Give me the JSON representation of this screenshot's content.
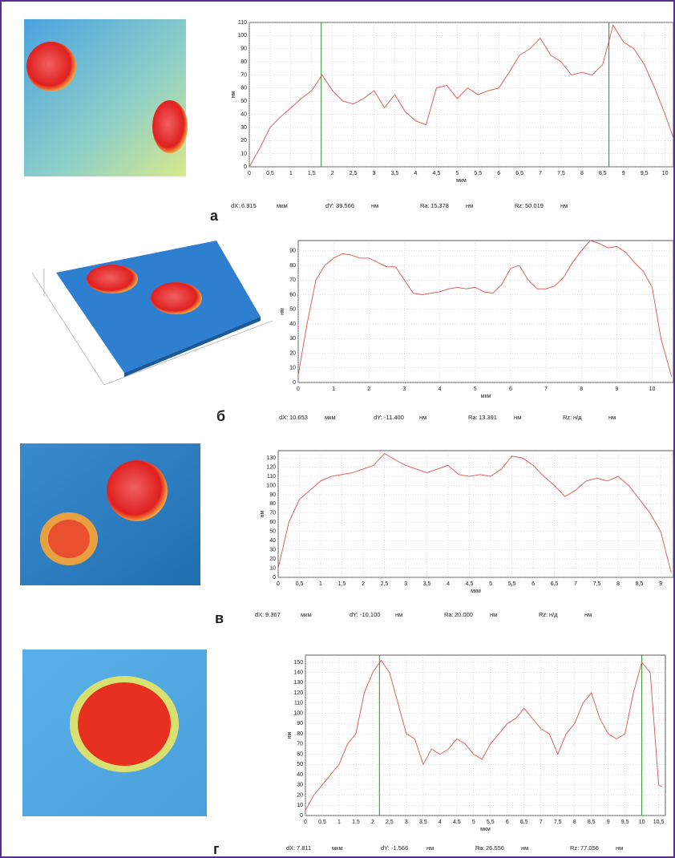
{
  "chart_data": [
    {
      "type": "line",
      "x_label": "мкм",
      "y_label": "нм",
      "letter": "а",
      "color": "#d9534f",
      "grid": true,
      "x": [
        0,
        0.25,
        0.5,
        0.75,
        1,
        1.25,
        1.5,
        1.75,
        2,
        2.25,
        2.5,
        2.75,
        3,
        3.25,
        3.5,
        3.75,
        4,
        4.25,
        4.5,
        4.75,
        5,
        5.25,
        5.5,
        5.75,
        6,
        6.25,
        6.5,
        6.75,
        7,
        7.25,
        7.5,
        7.75,
        8,
        8.25,
        8.5,
        8.75,
        9,
        9.25,
        9.5,
        9.75,
        10,
        10.2
      ],
      "values": [
        0,
        14,
        30,
        38,
        45,
        52,
        58,
        70,
        58,
        50,
        48,
        52,
        58,
        45,
        55,
        42,
        35,
        32,
        60,
        62,
        52,
        60,
        55,
        58,
        60,
        72,
        85,
        90,
        98,
        85,
        80,
        70,
        72,
        70,
        78,
        108,
        95,
        90,
        78,
        60,
        40,
        22
      ],
      "markers": [
        1.73,
        8.65
      ],
      "xlim": [
        0,
        10.2
      ],
      "ylim": [
        0,
        110
      ],
      "xticks": [
        0,
        {
          "value": 0.5,
          "label": "0,5"
        },
        1,
        {
          "value": 1.5,
          "label": "1,5"
        },
        2,
        {
          "value": 2.5,
          "label": "2,5"
        },
        3,
        {
          "value": 3.5,
          "label": "3,5"
        },
        4,
        {
          "value": 4.5,
          "label": "4,5"
        },
        5,
        {
          "value": 5.5,
          "label": "5,5"
        },
        6,
        {
          "value": 6.5,
          "label": "6,5"
        },
        7,
        {
          "value": 7.5,
          "label": "7,5"
        },
        8,
        {
          "value": 8.5,
          "label": "8,5"
        },
        9,
        {
          "value": 9.5,
          "label": "9,5"
        },
        10
      ],
      "yticks": [
        0,
        10,
        20,
        30,
        40,
        50,
        60,
        70,
        80,
        90,
        100,
        110
      ],
      "stats": [
        "dX:",
        "6.915",
        "мкм",
        "dY:",
        "39.566",
        "нм",
        "Ra:",
        "15.378",
        "нм",
        "Rz:",
        "50.019",
        "нм"
      ]
    },
    {
      "type": "line",
      "x_label": "мкм",
      "y_label": "нм",
      "letter": "б",
      "color": "#d9534f",
      "grid": true,
      "x": [
        0,
        0.25,
        0.5,
        0.75,
        1,
        1.25,
        1.5,
        1.75,
        2,
        2.25,
        2.5,
        2.75,
        3,
        3.25,
        3.5,
        3.75,
        4,
        4.25,
        4.5,
        4.75,
        5,
        5.25,
        5.5,
        5.75,
        6,
        6.25,
        6.5,
        6.75,
        7,
        7.25,
        7.5,
        7.75,
        8,
        8.25,
        8.5,
        8.75,
        9,
        9.25,
        9.5,
        9.75,
        10,
        10.25,
        10.55
      ],
      "values": [
        5,
        40,
        70,
        80,
        85,
        88,
        87,
        85,
        85,
        82,
        79,
        79,
        70,
        61,
        60,
        61,
        62,
        64,
        65,
        64,
        65,
        62,
        61,
        67,
        78,
        80,
        70,
        64,
        64,
        66,
        72,
        82,
        90,
        97,
        95,
        92,
        93,
        89,
        82,
        76,
        65,
        30,
        4
      ],
      "xlim": [
        0,
        10.6
      ],
      "ylim": [
        0,
        97
      ],
      "xticks": [
        0,
        1,
        2,
        3,
        4,
        5,
        6,
        7,
        8,
        9,
        10
      ],
      "yticks": [
        0,
        10,
        20,
        30,
        40,
        50,
        60,
        70,
        80,
        90
      ],
      "stats": [
        "dX:",
        "10.653",
        "мкм",
        "dY:",
        "-11.400",
        "нм",
        "Ra:",
        "13.391",
        "нм",
        "Rz:",
        "н/д",
        "нм"
      ]
    },
    {
      "type": "line",
      "x_label": "мкм",
      "y_label": "нм",
      "letter": "в",
      "color": "#d9534f",
      "grid": true,
      "x": [
        0,
        0.25,
        0.5,
        0.75,
        1,
        1.25,
        1.5,
        1.75,
        2,
        2.25,
        2.5,
        2.75,
        3,
        3.25,
        3.5,
        3.75,
        4,
        4.25,
        4.5,
        4.75,
        5,
        5.25,
        5.5,
        5.75,
        6,
        6.25,
        6.5,
        6.75,
        7,
        7.25,
        7.5,
        7.75,
        8,
        8.25,
        8.5,
        8.75,
        9,
        9.25
      ],
      "values": [
        10,
        60,
        85,
        95,
        105,
        110,
        112,
        114,
        118,
        122,
        135,
        128,
        122,
        118,
        114,
        118,
        122,
        112,
        110,
        112,
        110,
        118,
        132,
        130,
        122,
        110,
        100,
        88,
        95,
        105,
        108,
        105,
        110,
        100,
        85,
        70,
        50,
        5
      ],
      "xlim": [
        0,
        9.3
      ],
      "ylim": [
        0,
        138
      ],
      "xticks": [
        0,
        {
          "value": 0.5,
          "label": "0,5"
        },
        1,
        {
          "value": 1.5,
          "label": "1,5"
        },
        2,
        {
          "value": 2.5,
          "label": "2,5"
        },
        3,
        {
          "value": 3.5,
          "label": "3,5"
        },
        4,
        {
          "value": 4.5,
          "label": "4,5"
        },
        5,
        {
          "value": 5.5,
          "label": "5,5"
        },
        6,
        {
          "value": 6.5,
          "label": "6,5"
        },
        7,
        {
          "value": 7.5,
          "label": "7,5"
        },
        8,
        {
          "value": 8.5,
          "label": "8,5"
        },
        9
      ],
      "yticks": [
        0,
        10,
        20,
        30,
        40,
        50,
        60,
        70,
        80,
        90,
        100,
        110,
        120,
        130
      ],
      "stats": [
        "dX:",
        "9.367",
        "мкм",
        "dY:",
        "-10.100",
        "нм",
        "Ra:",
        "20.000",
        "нм",
        "Rz:",
        "н/д",
        "нм"
      ]
    },
    {
      "type": "line",
      "x_label": "мкм",
      "y_label": "нм",
      "letter": "г",
      "color": "#d9534f",
      "grid": true,
      "x": [
        0,
        0.25,
        0.5,
        0.75,
        1,
        1.25,
        1.5,
        1.75,
        2,
        2.25,
        2.5,
        2.75,
        3,
        3.25,
        3.5,
        3.75,
        4,
        4.25,
        4.5,
        4.75,
        5,
        5.25,
        5.5,
        5.75,
        6,
        6.25,
        6.5,
        6.75,
        7,
        7.25,
        7.5,
        7.75,
        8,
        8.25,
        8.5,
        8.75,
        9,
        9.25,
        9.5,
        9.75,
        10,
        10.25,
        10.5,
        10.6
      ],
      "values": [
        5,
        20,
        30,
        40,
        50,
        70,
        80,
        120,
        140,
        152,
        140,
        110,
        80,
        75,
        50,
        65,
        60,
        65,
        75,
        70,
        60,
        55,
        70,
        80,
        90,
        95,
        105,
        95,
        85,
        80,
        60,
        80,
        90,
        110,
        120,
        95,
        80,
        75,
        80,
        120,
        150,
        140,
        30,
        28
      ],
      "markers": [
        2.2,
        10.0
      ],
      "xlim": [
        0,
        10.7
      ],
      "ylim": [
        0,
        157
      ],
      "xticks": [
        0,
        {
          "value": 0.5,
          "label": "0,5"
        },
        1,
        {
          "value": 1.5,
          "label": "1,5"
        },
        2,
        {
          "value": 2.5,
          "label": "2,5"
        },
        3,
        {
          "value": 3.5,
          "label": "3,5"
        },
        4,
        {
          "value": 4.5,
          "label": "4,5"
        },
        5,
        {
          "value": 5.5,
          "label": "5,5"
        },
        6,
        {
          "value": 6.5,
          "label": "6,5"
        },
        7,
        {
          "value": 7.5,
          "label": "7,5"
        },
        8,
        {
          "value": 8.5,
          "label": "8,5"
        },
        9,
        {
          "value": 9.5,
          "label": "9,5"
        },
        10,
        {
          "value": 10.5,
          "label": "10,5"
        }
      ],
      "yticks": [
        0,
        10,
        20,
        30,
        40,
        50,
        60,
        70,
        80,
        90,
        100,
        110,
        120,
        130,
        140,
        150
      ],
      "stats": [
        "dX:",
        "7.811",
        "мкм",
        "dY:",
        "-1.566",
        "нм",
        "Ra:",
        "26.556",
        "нм",
        "Rz:",
        "77.056",
        "нм"
      ]
    }
  ]
}
